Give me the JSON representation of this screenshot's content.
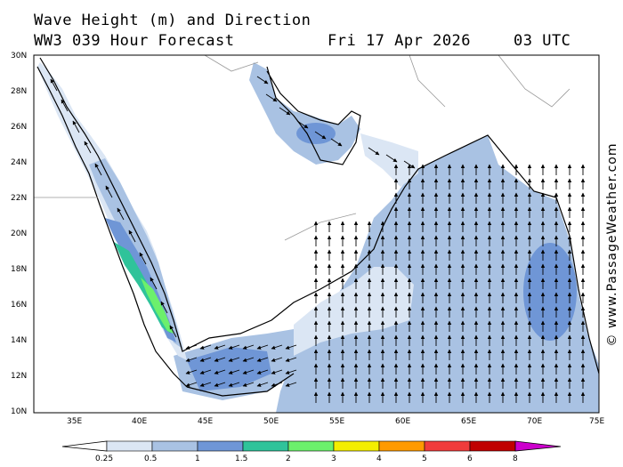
{
  "header": {
    "title_line1": "Wave Height (m) and Direction",
    "title_line2": "WW3 039 Hour Forecast",
    "date": "Fri 17 Apr 2026",
    "time": "03 UTC"
  },
  "credit": "© www.PassageWeather.com",
  "map": {
    "lat_range": [
      10,
      30
    ],
    "lon_range": [
      32,
      75
    ],
    "lat_labels": [
      "30N",
      "28N",
      "26N",
      "24N",
      "22N",
      "20N",
      "18N",
      "16N",
      "14N",
      "12N",
      "10N"
    ],
    "lon_labels": [
      "35E",
      "40E",
      "45E",
      "50E",
      "55E",
      "60E",
      "65E",
      "70E",
      "75E"
    ],
    "dominant_arrow_direction": "north"
  },
  "legend": {
    "labels": [
      "0.25",
      "0.5",
      "1",
      "1.5",
      "2",
      "3",
      "4",
      "5",
      "6",
      "8"
    ],
    "colors": [
      "#ffffff",
      "#dbe6f4",
      "#a9c2e3",
      "#6f96d6",
      "#2fc39a",
      "#6cf06c",
      "#f4ee00",
      "#ff9a00",
      "#f03c3c",
      "#c00000",
      "#cc00cc"
    ]
  }
}
